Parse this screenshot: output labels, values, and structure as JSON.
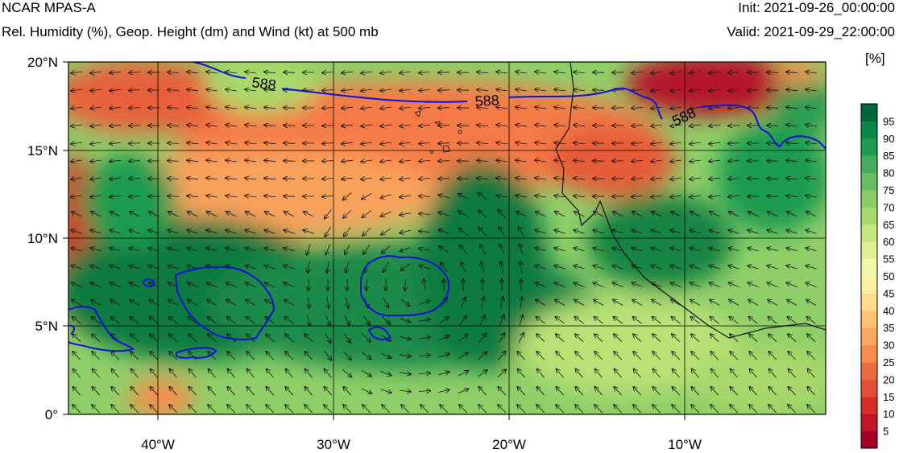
{
  "header": {
    "model": "NCAR MPAS-A",
    "subtitle": "Rel. Humidity (%), Geop. Height (dm) and Wind (kt) at 500 mb",
    "init": "Init: 2021-09-26_00:00:00",
    "valid": "Valid: 2021-09-29_22:00:00"
  },
  "colorbar": {
    "unit": "[%]",
    "labels": [
      "5",
      "10",
      "15",
      "20",
      "25",
      "30",
      "35",
      "40",
      "45",
      "50",
      "55",
      "60",
      "65",
      "70",
      "75",
      "80",
      "85",
      "90",
      "95"
    ],
    "colors": [
      "#a50026",
      "#c41427",
      "#d62f27",
      "#e34f33",
      "#ef6a3c",
      "#f78c4d",
      "#fca85e",
      "#fdc272",
      "#fedb87",
      "#feee9f",
      "#f2f9a8",
      "#dff293",
      "#c4e67f",
      "#a7d96b",
      "#88cc65",
      "#66bd63",
      "#45ad5a",
      "#1e9c50",
      "#0b8746",
      "#006837"
    ]
  },
  "map": {
    "x_ticks": [
      "40°W",
      "30°W",
      "20°W",
      "10°W"
    ],
    "y_ticks": [
      "20°N",
      "15°N",
      "10°N",
      "5°N",
      "0°"
    ],
    "contour_labels": [
      "588",
      "588",
      "588"
    ]
  }
}
